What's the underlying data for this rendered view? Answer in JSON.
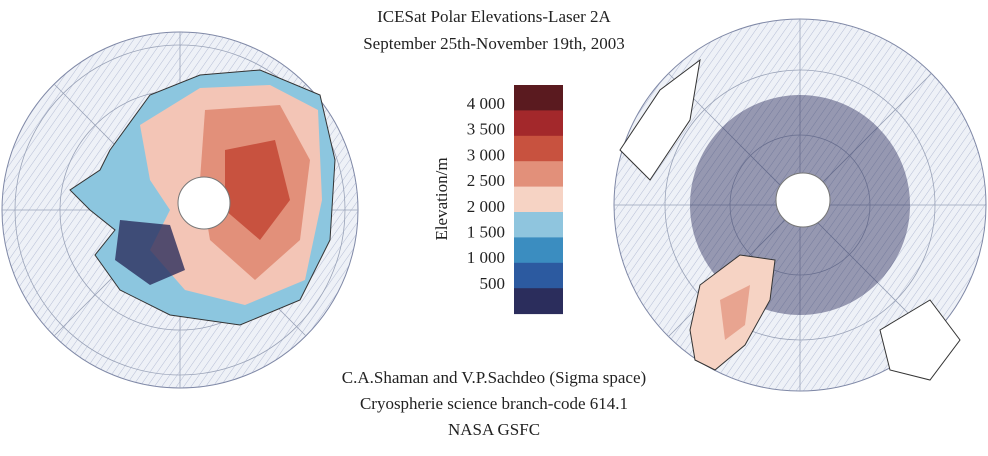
{
  "header": {
    "title": "ICESat Polar Elevations-Laser 2A",
    "subtitle": "September 25th-November 19th, 2003"
  },
  "legend": {
    "label": "Elevation/m",
    "ticks": [
      "4 000",
      "3 500",
      "3 000",
      "2 500",
      "2 000",
      "1 500",
      "1 000",
      "500"
    ],
    "colors": [
      "#5a1a1f",
      "#a3282b",
      "#c8523f",
      "#e2907a",
      "#f6d3c4",
      "#8fc5de",
      "#3b8dc0",
      "#2c5aa0",
      "#2b2d5c"
    ]
  },
  "credits": [
    "C.A.Shaman and V.P.Sachdeo (Sigma space)",
    "Cryospherie science branch-code 614.1",
    "NASA GSFC"
  ]
}
